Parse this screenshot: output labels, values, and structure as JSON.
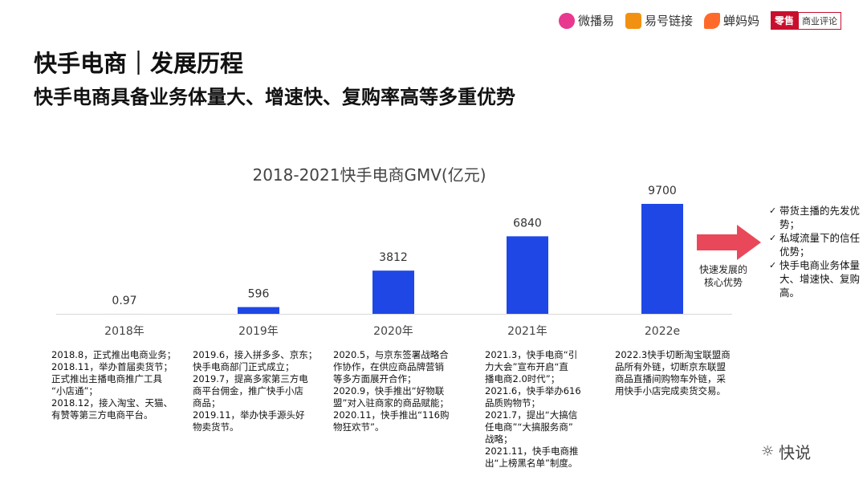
{
  "header": {
    "title": "快手电商｜发展历程",
    "subtitle": "快手电商具备业务体量大、增速快、复购率高等多重优势"
  },
  "logos": [
    {
      "name": "微播易",
      "color": "#e8388f"
    },
    {
      "name": "易号链接",
      "color": "#f29111"
    },
    {
      "name": "蝉妈妈",
      "color": "#ff6a2b"
    },
    {
      "name": "零售",
      "extra": "商业评论",
      "color": "#c8102e"
    }
  ],
  "chart_data": {
    "type": "bar",
    "title": "2018-2021快手电商GMV(亿元)",
    "categories": [
      "2018年",
      "2019年",
      "2020年",
      "2021年",
      "2022e"
    ],
    "values": [
      0.97,
      596,
      3812,
      6840,
      9700
    ],
    "value_labels": [
      "0.97",
      "596",
      "3812",
      "6840",
      "9700"
    ],
    "ylim": [
      0,
      9700
    ],
    "xlabel": "",
    "ylabel": "",
    "grid": false,
    "bar_color": "#1f47e6"
  },
  "milestones": [
    "2018.8，正式推出电商业务；\n2018.11，举办首届卖货节；\n正式推出主播电商推广工具\n“小店通”；\n2018.12，接入淘宝、天猫、\n有赞等第三方电商平台。",
    "2019.6，接入拼多多、京东；\n快手电商部门正式成立；\n2019.7，提高多家第三方电\n商平台佣金，推广快手小店\n商品；\n2019.11，举办快手源头好\n物卖货节。",
    "2020.5，与京东签署战略合\n作协作，在供应商品牌营销\n等多方面展开合作；\n2020.9，快手推出“好物联\n盟”对入驻商家的商品赋能；\n2020.11，快手推出“116购\n物狂欢节”。",
    "2021.3，快手电商“引\n力大会”宣布开启“直\n播电商2.0时代”；\n2021.6，快手举办616\n品质购物节；\n2021.7，提出“大搞信\n任电商”“大搞服务商”\n战略；\n2021.11，快手电商推\n出“上榜黑名单”制度。",
    "2022.3快手切断淘宝联盟商\n品所有外链，切断京东联盟\n商品直播间购物车外链，采\n用快手小店完成卖货交易。"
  ],
  "arrow_label": "快速发展的\n核心优势",
  "advantages": [
    "带货主播的先发优势；",
    "私域流量下的信任优势；",
    "快手电商业务体量大、增速快、复购高。"
  ],
  "watermark": "快说"
}
